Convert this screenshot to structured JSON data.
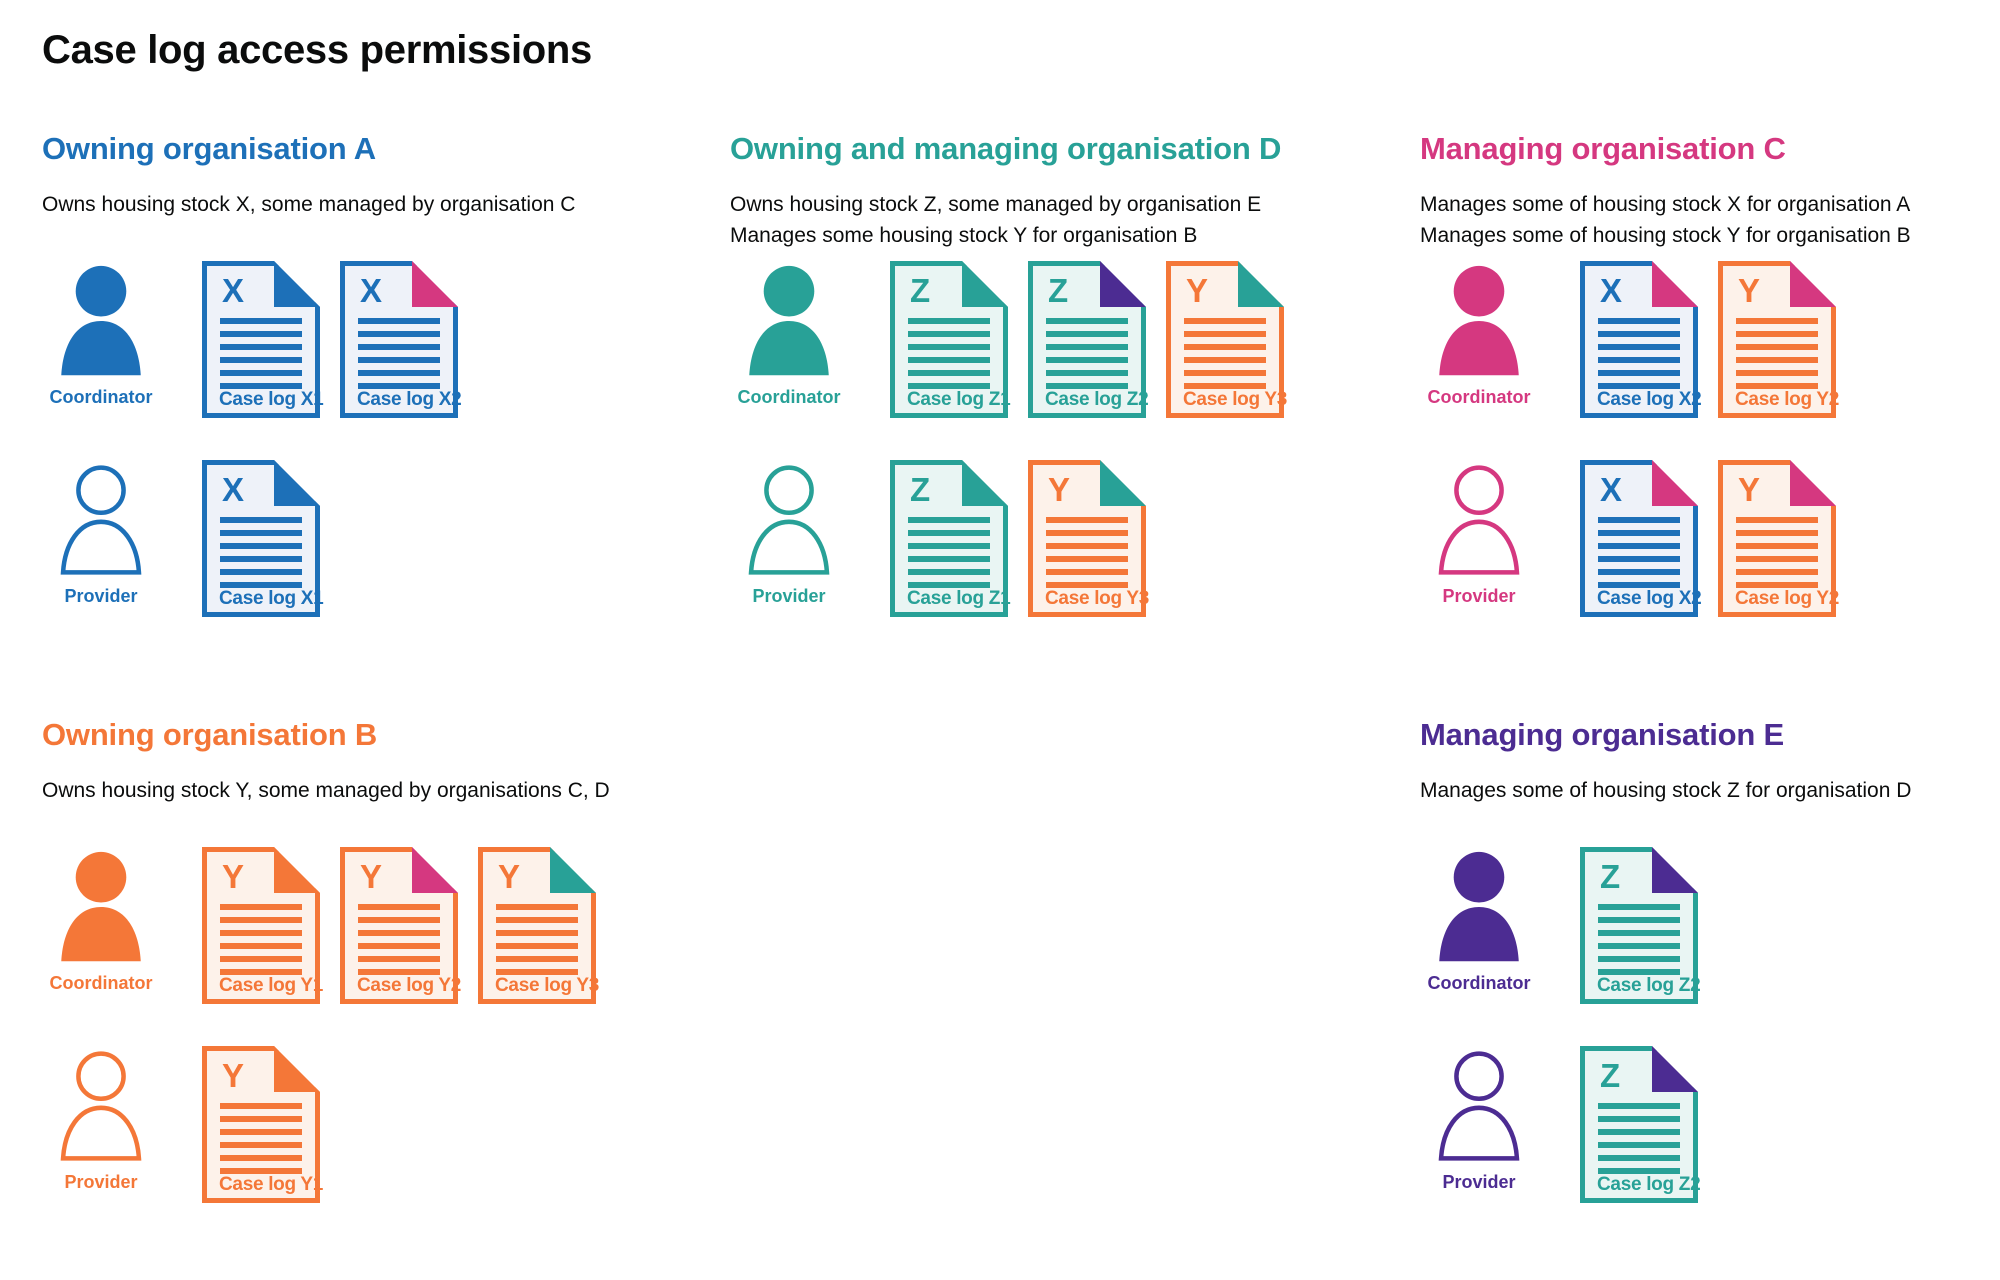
{
  "title": "Case log access permissions",
  "colors": {
    "text": "#0b0c0c",
    "blue": "#1d70b8",
    "teal": "#28a197",
    "pink": "#d53880",
    "orange": "#f47738",
    "purple": "#4c2c92"
  },
  "doc_backgrounds": {
    "blue": "#eef2f9",
    "teal": "#e9f5f3",
    "orange": "#fdf2ea"
  },
  "organisations": [
    {
      "id": "org-a",
      "heading": "Owning organisation A",
      "color": "blue",
      "description_lines": [
        "Owns housing stock X, some managed by organisation C"
      ],
      "rows": [
        {
          "role": "Coordinator",
          "person_style": "filled",
          "docs": [
            {
              "letter": "X",
              "label": "Case log X1",
              "color": "blue",
              "fold_color": "blue"
            },
            {
              "letter": "X",
              "label": "Case log X2",
              "color": "blue",
              "fold_color": "pink"
            }
          ]
        },
        {
          "role": "Provider",
          "person_style": "outline",
          "docs": [
            {
              "letter": "X",
              "label": "Case log X1",
              "color": "blue",
              "fold_color": "blue"
            }
          ]
        }
      ]
    },
    {
      "id": "org-d",
      "heading": "Owning and managing organisation D",
      "color": "teal",
      "description_lines": [
        "Owns housing stock Z, some managed by organisation E",
        "Manages some housing stock Y for organisation B"
      ],
      "rows": [
        {
          "role": "Coordinator",
          "person_style": "filled",
          "docs": [
            {
              "letter": "Z",
              "label": "Case log Z1",
              "color": "teal",
              "fold_color": "teal"
            },
            {
              "letter": "Z",
              "label": "Case log Z2",
              "color": "teal",
              "fold_color": "purple"
            },
            {
              "letter": "Y",
              "label": "Case log Y3",
              "color": "orange",
              "fold_color": "teal"
            }
          ]
        },
        {
          "role": "Provider",
          "person_style": "outline",
          "docs": [
            {
              "letter": "Z",
              "label": "Case log Z1",
              "color": "teal",
              "fold_color": "teal"
            },
            {
              "letter": "Y",
              "label": "Case log Y3",
              "color": "orange",
              "fold_color": "teal"
            }
          ]
        }
      ]
    },
    {
      "id": "org-c",
      "heading": "Managing organisation C",
      "color": "pink",
      "description_lines": [
        "Manages some of housing stock X for organisation A",
        "Manages some of housing stock Y for organisation B"
      ],
      "rows": [
        {
          "role": "Coordinator",
          "person_style": "filled",
          "docs": [
            {
              "letter": "X",
              "label": "Case log X2",
              "color": "blue",
              "fold_color": "pink"
            },
            {
              "letter": "Y",
              "label": "Case log Y2",
              "color": "orange",
              "fold_color": "pink"
            }
          ]
        },
        {
          "role": "Provider",
          "person_style": "outline",
          "docs": [
            {
              "letter": "X",
              "label": "Case log X2",
              "color": "blue",
              "fold_color": "pink"
            },
            {
              "letter": "Y",
              "label": "Case log Y2",
              "color": "orange",
              "fold_color": "pink"
            }
          ]
        }
      ]
    },
    {
      "id": "org-b",
      "heading": "Owning organisation B",
      "color": "orange",
      "description_lines": [
        "Owns housing stock Y, some managed by organisations C, D"
      ],
      "rows": [
        {
          "role": "Coordinator",
          "person_style": "filled",
          "docs": [
            {
              "letter": "Y",
              "label": "Case log Y1",
              "color": "orange",
              "fold_color": "orange"
            },
            {
              "letter": "Y",
              "label": "Case log Y2",
              "color": "orange",
              "fold_color": "pink"
            },
            {
              "letter": "Y",
              "label": "Case log Y3",
              "color": "orange",
              "fold_color": "teal"
            }
          ]
        },
        {
          "role": "Provider",
          "person_style": "outline",
          "docs": [
            {
              "letter": "Y",
              "label": "Case log Y1",
              "color": "orange",
              "fold_color": "orange"
            }
          ]
        }
      ]
    },
    {
      "id": "org-e",
      "heading": "Managing organisation E",
      "color": "purple",
      "description_lines": [
        "Manages some of housing stock Z for organisation D"
      ],
      "rows": [
        {
          "role": "Coordinator",
          "person_style": "filled",
          "docs": [
            {
              "letter": "Z",
              "label": "Case log Z2",
              "color": "teal",
              "fold_color": "purple"
            }
          ]
        },
        {
          "role": "Provider",
          "person_style": "outline",
          "docs": [
            {
              "letter": "Z",
              "label": "Case log Z2",
              "color": "teal",
              "fold_color": "purple"
            }
          ]
        }
      ]
    }
  ]
}
